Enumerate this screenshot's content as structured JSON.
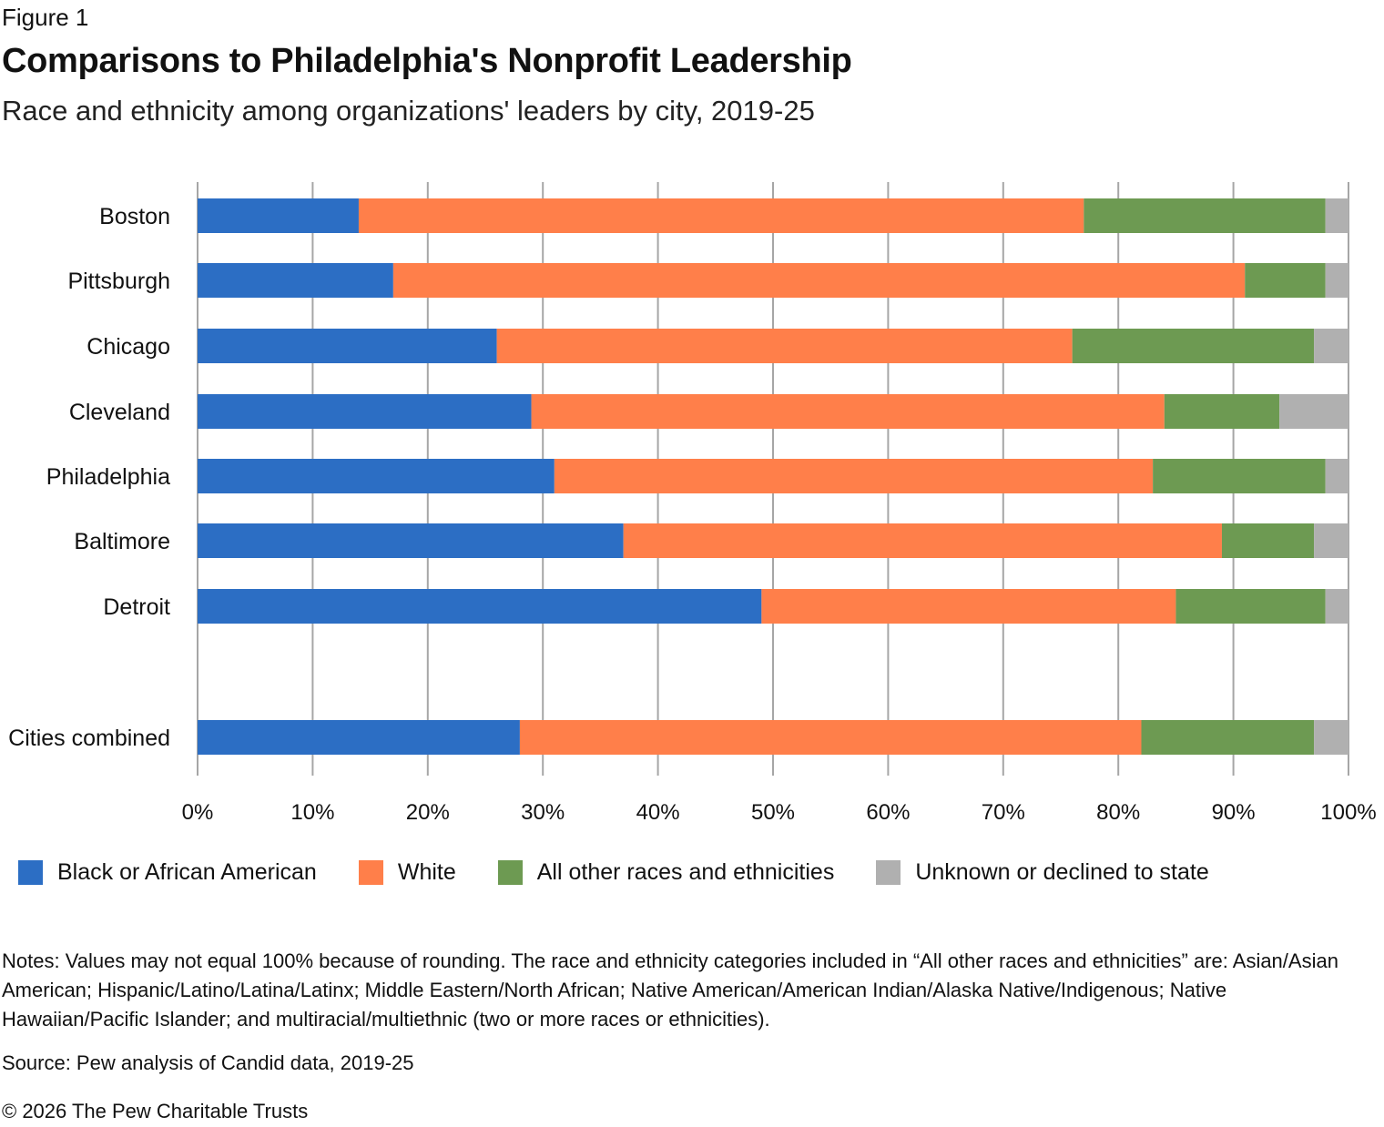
{
  "figure_label": "Figure 1",
  "title": "Comparisons to Philadelphia's Nonprofit Leadership",
  "subtitle": "Race and ethnicity among organizations' leaders by city, 2019-25",
  "legend": [
    {
      "name": "Black or African American",
      "color": "#2c6ec4"
    },
    {
      "name": "White",
      "color": "#ff7f4a"
    },
    {
      "name": "All other races and ethnicities",
      "color": "#6d9a52"
    },
    {
      "name": "Unknown or declined to state",
      "color": "#b0b0b0"
    }
  ],
  "notes": "Notes: Values may not equal 100% because of rounding. The race and ethnicity categories included in “All other races and ethnicities” are: Asian/Asian American; Hispanic/Latino/Latina/Latinx; Middle Eastern/North African; Native American/American Indian/Alaska Native/Indigenous; Native Hawaiian/Pacific Islander; and multiracial/multiethnic (two or more races or ethnicities).",
  "source": "Source: Pew analysis of Candid data, 2019-25",
  "copyright": "© 2026 The Pew Charitable Trusts",
  "chart_data": {
    "type": "bar",
    "orientation": "horizontal",
    "stacked": true,
    "title": "Comparisons to Philadelphia's Nonprofit Leadership",
    "subtitle": "Race and ethnicity among organizations' leaders by city, 2019-25",
    "xlabel": "",
    "ylabel": "",
    "xlim": [
      0,
      100
    ],
    "x_ticks": [
      "0%",
      "10%",
      "20%",
      "30%",
      "40%",
      "50%",
      "60%",
      "70%",
      "80%",
      "90%",
      "100%"
    ],
    "grid": "vertical",
    "legend_position": "bottom",
    "categories": [
      "Boston",
      "Pittsburgh",
      "Chicago",
      "Cleveland",
      "Philadelphia",
      "Baltimore",
      "Detroit",
      "Cities combined"
    ],
    "series": [
      {
        "name": "Black or African American",
        "color": "#2c6ec4",
        "values": [
          14,
          17,
          26,
          29,
          31,
          37,
          49,
          28
        ]
      },
      {
        "name": "White",
        "color": "#ff7f4a",
        "values": [
          63,
          74,
          50,
          55,
          52,
          52,
          36,
          54
        ]
      },
      {
        "name": "All other races and ethnicities",
        "color": "#6d9a52",
        "values": [
          21,
          7,
          21,
          10,
          15,
          8,
          13,
          15
        ]
      },
      {
        "name": "Unknown or declined to state",
        "color": "#b0b0b0",
        "values": [
          2,
          2,
          3,
          6,
          2,
          3,
          2,
          3
        ]
      }
    ]
  }
}
